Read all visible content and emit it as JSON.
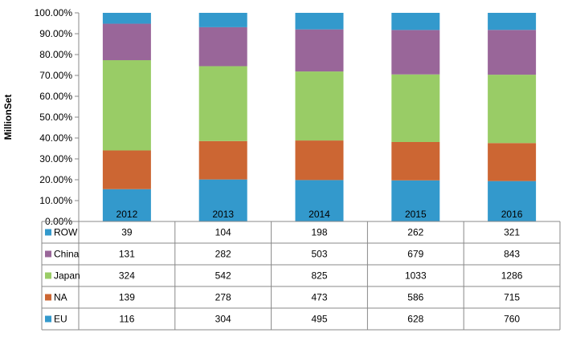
{
  "chart_data": {
    "type": "bar",
    "stacked": "percent",
    "categories": [
      "2012",
      "2013",
      "2014",
      "2015",
      "2016"
    ],
    "ylabel": "MillionSet",
    "ylim": [
      0,
      100
    ],
    "yticks": [
      "0.00%",
      "10.00%",
      "20.00%",
      "30.00%",
      "40.00%",
      "50.00%",
      "60.00%",
      "70.00%",
      "80.00%",
      "90.00%",
      "100.00%"
    ],
    "grid": false,
    "legend": "data-table",
    "series": [
      {
        "name": "ROW",
        "color": "#3399cc",
        "values": [
          39,
          104,
          198,
          262,
          321
        ]
      },
      {
        "name": "China",
        "color": "#996699",
        "values": [
          131,
          282,
          503,
          679,
          843
        ]
      },
      {
        "name": "Japan",
        "color": "#99cc66",
        "values": [
          324,
          542,
          825,
          1033,
          1286
        ]
      },
      {
        "name": "NA",
        "color": "#cc6633",
        "values": [
          139,
          278,
          473,
          586,
          715
        ]
      },
      {
        "name": "EU",
        "color": "#3399cc",
        "values": [
          116,
          304,
          495,
          628,
          760
        ]
      }
    ]
  }
}
